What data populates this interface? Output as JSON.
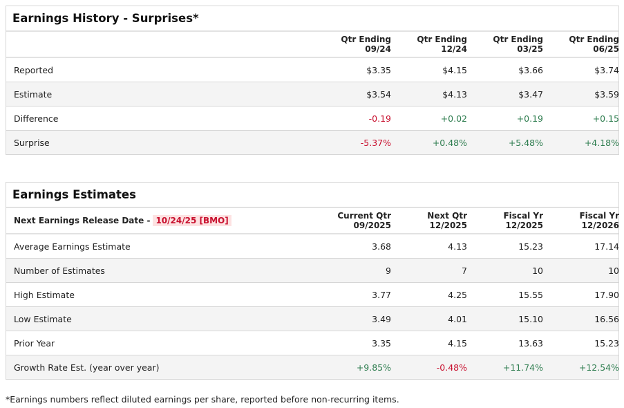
{
  "history": {
    "title": "Earnings History - Surprises*",
    "columns": [
      [
        "Qtr Ending",
        "09/24"
      ],
      [
        "Qtr Ending",
        "12/24"
      ],
      [
        "Qtr Ending",
        "03/25"
      ],
      [
        "Qtr Ending",
        "06/25"
      ]
    ],
    "rows": [
      {
        "label": "Reported",
        "values": [
          "$3.35",
          "$4.15",
          "$3.66",
          "$3.74"
        ]
      },
      {
        "label": "Estimate",
        "values": [
          "$3.54",
          "$4.13",
          "$3.47",
          "$3.59"
        ]
      },
      {
        "label": "Difference",
        "values": [
          "-0.19",
          "+0.02",
          "+0.19",
          "+0.15"
        ]
      },
      {
        "label": "Surprise",
        "values": [
          "-5.37%",
          "+0.48%",
          "+5.48%",
          "+4.18%"
        ]
      }
    ]
  },
  "estimates": {
    "title": "Earnings Estimates",
    "release_label": "Next Earnings Release Date -",
    "release_date": "10/24/25 [BMO]",
    "columns": [
      [
        "Current Qtr",
        "09/2025"
      ],
      [
        "Next Qtr",
        "12/2025"
      ],
      [
        "Fiscal Yr",
        "12/2025"
      ],
      [
        "Fiscal Yr",
        "12/2026"
      ]
    ],
    "rows": [
      {
        "label": "Average Earnings Estimate",
        "values": [
          "3.68",
          "4.13",
          "15.23",
          "17.14"
        ]
      },
      {
        "label": "Number of Estimates",
        "values": [
          "9",
          "7",
          "10",
          "10"
        ]
      },
      {
        "label": "High Estimate",
        "values": [
          "3.77",
          "4.25",
          "15.55",
          "17.90"
        ]
      },
      {
        "label": "Low Estimate",
        "values": [
          "3.49",
          "4.01",
          "15.10",
          "16.56"
        ]
      },
      {
        "label": "Prior Year",
        "values": [
          "3.35",
          "4.15",
          "13.63",
          "15.23"
        ]
      },
      {
        "label": "Growth Rate Est. (year over year)",
        "values": [
          "+9.85%",
          "-0.48%",
          "+11.74%",
          "+12.54%"
        ]
      }
    ]
  },
  "footnote": "*Earnings numbers reflect diluted earnings per share, reported before non-recurring items.",
  "colors": {
    "negative": "#c8102e",
    "positive": "#2e7d4f"
  }
}
